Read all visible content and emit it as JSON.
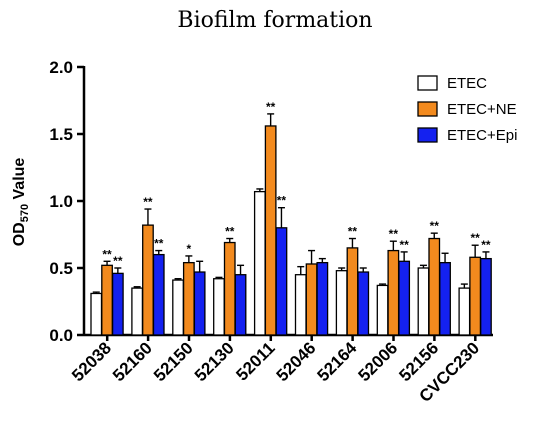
{
  "chart_data": {
    "type": "bar",
    "title": "Biofilm formation",
    "ylabel_main": "OD",
    "ylabel_sub": "570",
    "ylabel_rest": " Value",
    "ylim": [
      0,
      2.0
    ],
    "yticks": [
      "0.0",
      "0.5",
      "1.0",
      "1.5",
      "2.0"
    ],
    "categories": [
      "52038",
      "52160",
      "52150",
      "52130",
      "52011",
      "52046",
      "52164",
      "52006",
      "52156",
      "CVCC230"
    ],
    "legend_position": "top-right",
    "series": [
      {
        "name": "ETEC",
        "color": "#ffffff",
        "values": [
          0.31,
          0.35,
          0.41,
          0.42,
          1.07,
          0.45,
          0.48,
          0.37,
          0.5,
          0.35
        ],
        "errors": [
          0.01,
          0.01,
          0.01,
          0.01,
          0.02,
          0.06,
          0.02,
          0.01,
          0.02,
          0.03
        ],
        "stars": [
          "",
          "",
          "",
          "",
          "",
          "",
          "",
          "",
          "",
          ""
        ]
      },
      {
        "name": "ETEC+NE",
        "color": "#f28a1e",
        "values": [
          0.52,
          0.82,
          0.54,
          0.69,
          1.56,
          0.53,
          0.65,
          0.63,
          0.72,
          0.58
        ],
        "errors": [
          0.03,
          0.12,
          0.05,
          0.03,
          0.09,
          0.1,
          0.07,
          0.07,
          0.04,
          0.09
        ],
        "stars": [
          "**",
          "**",
          "*",
          "**",
          "**",
          "",
          "**",
          "**",
          "**",
          "**"
        ]
      },
      {
        "name": "ETEC+Epi",
        "color": "#1421f0",
        "values": [
          0.46,
          0.6,
          0.47,
          0.45,
          0.8,
          0.54,
          0.47,
          0.55,
          0.54,
          0.57
        ],
        "errors": [
          0.04,
          0.03,
          0.08,
          0.07,
          0.15,
          0.03,
          0.03,
          0.07,
          0.07,
          0.05
        ],
        "stars": [
          "**",
          "**",
          "",
          "",
          "**",
          "",
          "",
          "**",
          "",
          "**"
        ]
      }
    ]
  }
}
